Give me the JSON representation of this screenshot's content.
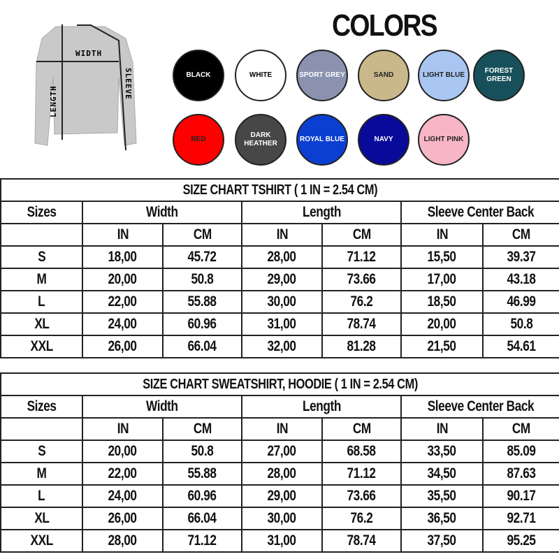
{
  "diagram": {
    "width": "WIDTH",
    "length": "LENGTH",
    "sleeve": "SLEEVE"
  },
  "colors_title": "COLORS",
  "colors": [
    {
      "label": "BLACK",
      "hex": "#000000",
      "text": "#ffffff"
    },
    {
      "label": "WHITE",
      "hex": "#ffffff",
      "text": "#000000"
    },
    {
      "label": "SPORT GREY",
      "hex": "#8a92b0",
      "text": "#ffffff"
    },
    {
      "label": "SAND",
      "hex": "#c8b88a",
      "text": "#222222"
    },
    {
      "label": "LIGHT BLUE",
      "hex": "#a9c6f2",
      "text": "#222222"
    },
    {
      "label": "FOREST GREEN",
      "hex": "#17505a",
      "text": "#ffffff"
    },
    {
      "label": "RED",
      "hex": "#ff0000",
      "text": "#222222"
    },
    {
      "label": "DARK HEATHER",
      "hex": "#474747",
      "text": "#ffffff"
    },
    {
      "label": "ROYAL BLUE",
      "hex": "#0b3fd1",
      "text": "#ffffff"
    },
    {
      "label": "NAVY",
      "hex": "#0a0a9a",
      "text": "#ffffff"
    },
    {
      "label": "LIGHT PINK",
      "hex": "#f7b6c6",
      "text": "#222222"
    }
  ],
  "tables": [
    {
      "title": "SIZE CHART TSHIRT ( 1 IN = 2.54 CM)",
      "headers": [
        "Sizes",
        "Width",
        "Length",
        "Sleeve Center Back"
      ],
      "units": [
        "IN",
        "CM",
        "IN",
        "CM",
        "IN",
        "CM"
      ],
      "rows": [
        [
          "S",
          "18,00",
          "45.72",
          "28,00",
          "71.12",
          "15,50",
          "39.37"
        ],
        [
          "M",
          "20,00",
          "50.8",
          "29,00",
          "73.66",
          "17,00",
          "43.18"
        ],
        [
          "L",
          "22,00",
          "55.88",
          "30,00",
          "76.2",
          "18,50",
          "46.99"
        ],
        [
          "XL",
          "24,00",
          "60.96",
          "31,00",
          "78.74",
          "20,00",
          "50.8"
        ],
        [
          "XXL",
          "26,00",
          "66.04",
          "32,00",
          "81.28",
          "21,50",
          "54.61"
        ]
      ]
    },
    {
      "title": "SIZE CHART  SWEATSHIRT,  HOODIE ( 1 IN = 2.54 CM)",
      "headers": [
        "Sizes",
        "Width",
        "Length",
        "Sleeve Center Back"
      ],
      "units": [
        "IN",
        "CM",
        "IN",
        "CM",
        "IN",
        "CM"
      ],
      "rows": [
        [
          "S",
          "20,00",
          "50.8",
          "27,00",
          "68.58",
          "33,50",
          "85.09"
        ],
        [
          "M",
          "22,00",
          "55.88",
          "28,00",
          "71.12",
          "34,50",
          "87.63"
        ],
        [
          "L",
          "24,00",
          "60.96",
          "29,00",
          "73.66",
          "35,50",
          "90.17"
        ],
        [
          "XL",
          "26,00",
          "66.04",
          "30,00",
          "76.2",
          "36,50",
          "92.71"
        ],
        [
          "XXL",
          "28,00",
          "71.12",
          "31,00",
          "78.74",
          "37,50",
          "95.25"
        ]
      ]
    }
  ]
}
